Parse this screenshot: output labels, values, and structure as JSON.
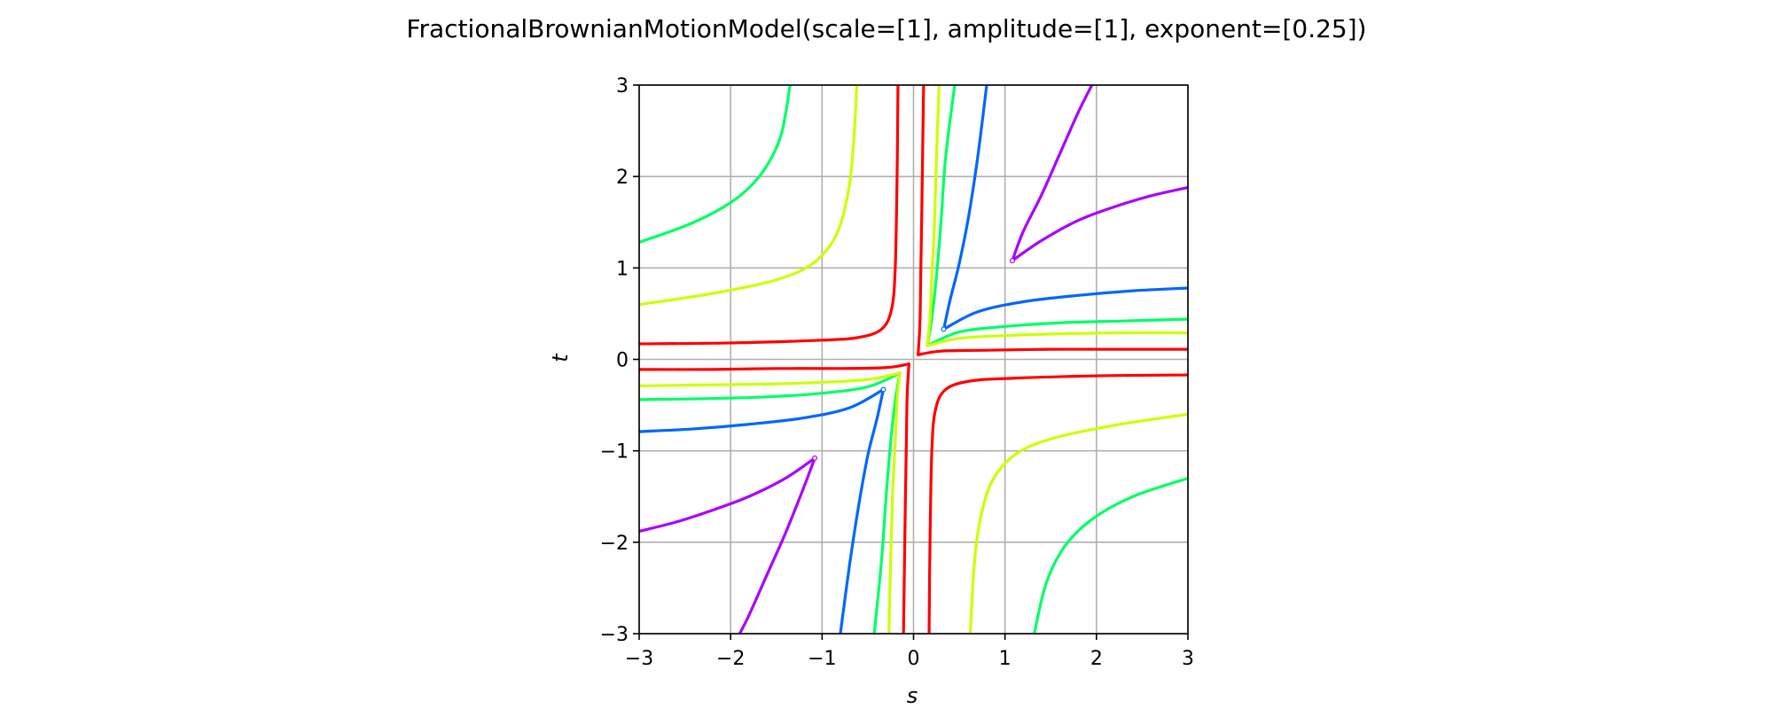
{
  "chart_data": {
    "type": "line",
    "title": "FractionalBrownianMotionModel(scale=[1], amplitude=[1], exponent=[0.25])",
    "xlabel": "s",
    "ylabel": "t",
    "xlim": [
      -3,
      3
    ],
    "ylim": [
      -3,
      3
    ],
    "xticks": [
      -3,
      -2,
      -1,
      0,
      1,
      2,
      3
    ],
    "yticks": [
      -3,
      -2,
      -1,
      0,
      1,
      2,
      3
    ],
    "xtick_labels": [
      "−3",
      "−2",
      "−1",
      "0",
      "1",
      "2",
      "3"
    ],
    "ytick_labels": [
      "−3",
      "−2",
      "−1",
      "0",
      "1",
      "2",
      "3"
    ],
    "grid": true,
    "aspect": "equal",
    "series": [
      {
        "color": "#aa00ff",
        "cusp_marker": true,
        "branches": [
          {
            "x": [
              1.08,
              1.2,
              1.4,
              1.6,
              1.8,
              1.95
            ],
            "y": [
              1.08,
              1.4,
              1.8,
              2.25,
              2.7,
              3.0
            ]
          },
          {
            "x": [
              1.08,
              1.4,
              1.8,
              2.2,
              2.6,
              3.0
            ],
            "y": [
              1.08,
              1.3,
              1.52,
              1.67,
              1.79,
              1.88
            ]
          },
          {
            "x": [
              -1.08,
              -1.2,
              -1.4,
              -1.6,
              -1.8,
              -1.9
            ],
            "y": [
              -1.08,
              -1.4,
              -1.9,
              -2.35,
              -2.8,
              -3.0
            ]
          },
          {
            "x": [
              -1.08,
              -1.4,
              -1.8,
              -2.2,
              -2.6,
              -3.0
            ],
            "y": [
              -1.08,
              -1.3,
              -1.5,
              -1.65,
              -1.78,
              -1.88
            ]
          }
        ]
      },
      {
        "color": "#0066ff",
        "cusp_marker": true,
        "branches": [
          {
            "x": [
              0.33,
              0.4,
              0.5,
              0.6,
              0.7,
              0.8
            ],
            "y": [
              0.33,
              0.65,
              1.05,
              1.55,
              2.2,
              3.0
            ]
          },
          {
            "x": [
              0.33,
              0.7,
              1.2,
              1.8,
              2.4,
              3.0
            ],
            "y": [
              0.33,
              0.52,
              0.63,
              0.7,
              0.75,
              0.78
            ]
          },
          {
            "x": [
              -0.33,
              -0.4,
              -0.5,
              -0.6,
              -0.7,
              -0.8
            ],
            "y": [
              -0.33,
              -0.65,
              -1.05,
              -1.6,
              -2.25,
              -3.0
            ]
          },
          {
            "x": [
              -0.33,
              -0.7,
              -1.2,
              -1.8,
              -2.4,
              -3.0
            ],
            "y": [
              -0.33,
              -0.53,
              -0.64,
              -0.71,
              -0.76,
              -0.79
            ]
          }
        ]
      },
      {
        "color": "#00ff66",
        "cusp_marker": false,
        "branches": [
          {
            "x": [
              0.15,
              0.2,
              0.25,
              0.3,
              0.35,
              0.45
            ],
            "y": [
              0.15,
              0.45,
              0.9,
              1.5,
              2.2,
              3.0
            ]
          },
          {
            "x": [
              0.15,
              0.5,
              1.0,
              1.6,
              2.3,
              3.0
            ],
            "y": [
              0.15,
              0.3,
              0.36,
              0.4,
              0.42,
              0.44
            ]
          },
          {
            "x": [
              -0.15,
              -0.2,
              -0.25,
              -0.3,
              -0.35,
              -0.43
            ],
            "y": [
              -0.15,
              -0.45,
              -0.9,
              -1.5,
              -2.2,
              -3.0
            ]
          },
          {
            "x": [
              -0.15,
              -0.5,
              -1.0,
              -1.6,
              -2.3,
              -3.0
            ],
            "y": [
              -0.15,
              -0.3,
              -0.37,
              -0.41,
              -0.43,
              -0.44
            ]
          },
          {
            "x": [
              -1.35,
              -1.45,
              -1.65,
              -1.95,
              -2.4,
              -3.0
            ],
            "y": [
              3.0,
              2.45,
              2.05,
              1.75,
              1.5,
              1.28
            ]
          },
          {
            "x": [
              1.32,
              1.45,
              1.65,
              1.95,
              2.4,
              3.0
            ],
            "y": [
              -3.0,
              -2.45,
              -2.05,
              -1.75,
              -1.5,
              -1.3
            ]
          }
        ]
      },
      {
        "color": "#ccff00",
        "cusp_marker": false,
        "branches": [
          {
            "x": [
              0.15,
              0.18,
              0.2,
              0.23,
              0.25,
              0.28
            ],
            "y": [
              0.15,
              0.45,
              0.9,
              1.5,
              2.2,
              3.0
            ]
          },
          {
            "x": [
              0.15,
              0.5,
              1.0,
              1.6,
              2.3,
              3.0
            ],
            "y": [
              0.15,
              0.23,
              0.26,
              0.28,
              0.29,
              0.29
            ]
          },
          {
            "x": [
              -0.15,
              -0.18,
              -0.2,
              -0.23,
              -0.25,
              -0.27
            ],
            "y": [
              -0.15,
              -0.45,
              -0.9,
              -1.5,
              -2.2,
              -3.0
            ]
          },
          {
            "x": [
              -0.15,
              -0.5,
              -1.0,
              -1.6,
              -2.3,
              -3.0
            ],
            "y": [
              -0.15,
              -0.22,
              -0.25,
              -0.27,
              -0.28,
              -0.29
            ]
          },
          {
            "x": [
              -0.62,
              -0.66,
              -0.72,
              -0.85,
              -1.1,
              -1.5,
              -2.2,
              -3.0
            ],
            "y": [
              3.0,
              2.3,
              1.8,
              1.35,
              1.05,
              0.87,
              0.72,
              0.6
            ]
          },
          {
            "x": [
              0.62,
              0.66,
              0.72,
              0.85,
              1.1,
              1.5,
              2.2,
              3.0
            ],
            "y": [
              -3.0,
              -2.3,
              -1.8,
              -1.35,
              -1.05,
              -0.87,
              -0.72,
              -0.6
            ]
          }
        ]
      },
      {
        "color": "#ff0000",
        "cusp_marker": false,
        "branches": [
          {
            "x": [
              0.05,
              0.07,
              0.08,
              0.09,
              0.1,
              0.11
            ],
            "y": [
              0.05,
              0.4,
              1.0,
              1.6,
              2.3,
              3.0
            ]
          },
          {
            "x": [
              0.05,
              0.3,
              0.8,
              1.5,
              2.2,
              3.0
            ],
            "y": [
              0.05,
              0.09,
              0.1,
              0.11,
              0.11,
              0.11
            ]
          },
          {
            "x": [
              -0.05,
              -0.07,
              -0.08,
              -0.09,
              -0.1,
              -0.11
            ],
            "y": [
              -0.05,
              -0.4,
              -1.0,
              -1.6,
              -2.3,
              -3.0
            ]
          },
          {
            "x": [
              -0.05,
              -0.3,
              -0.8,
              -1.5,
              -2.2,
              -3.0
            ],
            "y": [
              -0.05,
              -0.09,
              -0.1,
              -0.1,
              -0.11,
              -0.11
            ]
          },
          {
            "x": [
              -0.17,
              -0.18,
              -0.2,
              -0.24,
              -0.35,
              -0.6,
              -1.0,
              -2.0,
              -3.0
            ],
            "y": [
              3.0,
              2.0,
              1.0,
              0.55,
              0.33,
              0.24,
              0.21,
              0.18,
              0.17
            ]
          },
          {
            "x": [
              0.17,
              0.18,
              0.2,
              0.24,
              0.35,
              0.6,
              1.0,
              2.0,
              3.0
            ],
            "y": [
              -3.0,
              -2.0,
              -1.0,
              -0.55,
              -0.33,
              -0.24,
              -0.21,
              -0.18,
              -0.17
            ]
          }
        ]
      }
    ]
  }
}
